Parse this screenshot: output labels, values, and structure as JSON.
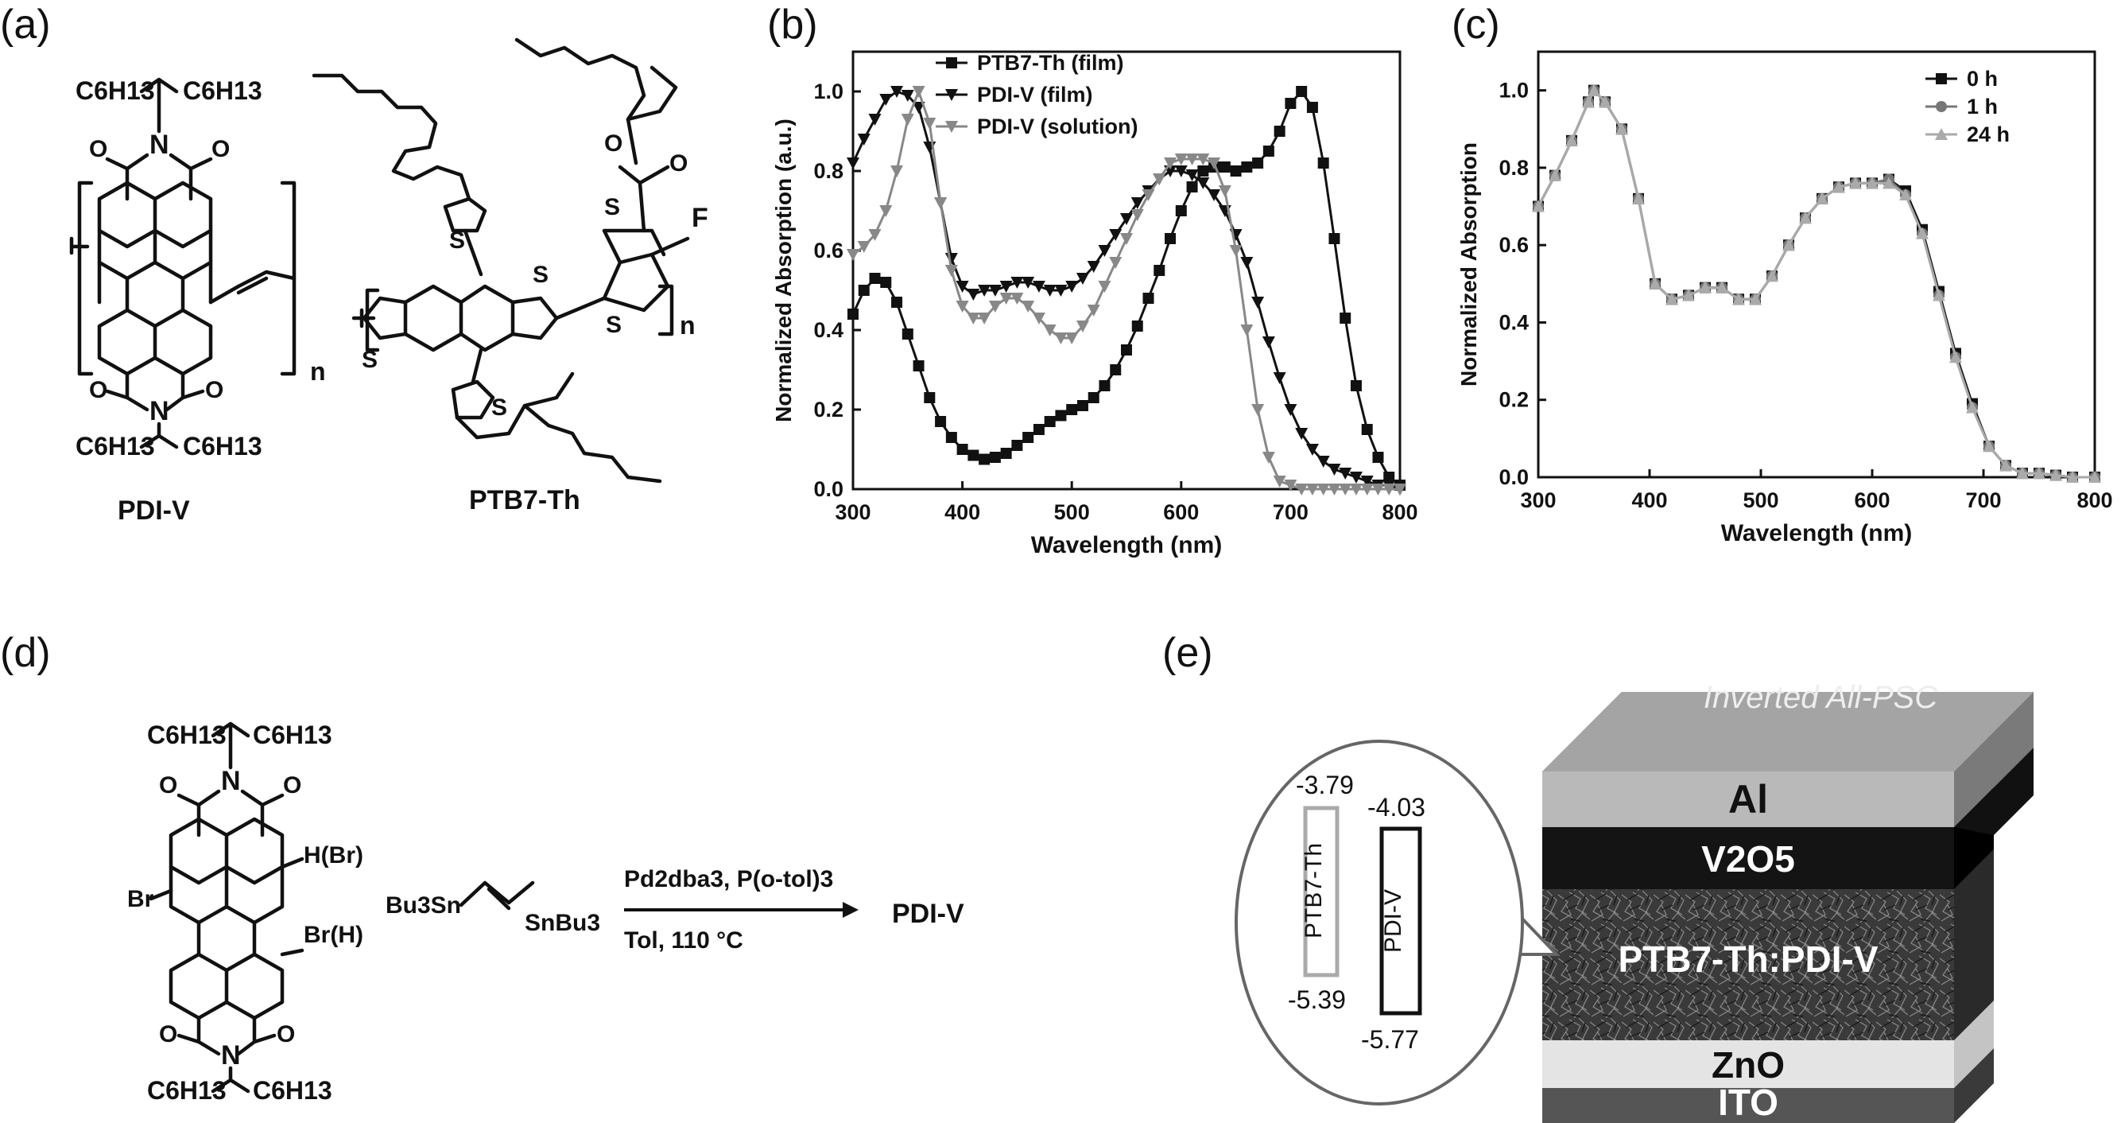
{
  "panels": {
    "a": "(a)",
    "b": "(b)",
    "c": "(c)",
    "d": "(d)",
    "e": "(e)"
  },
  "structures": {
    "pdiv_name": "PDI-V",
    "ptb7_name": "PTB7-Th",
    "alkyl_left": "C6H13",
    "alkyl_right": "C6H13",
    "atom_N": "N",
    "atom_O": "O",
    "atom_S": "S",
    "atom_F": "F",
    "repeat_n": "n"
  },
  "scheme": {
    "br_left": "Br",
    "h_br": "H(Br)",
    "br_h": "Br(H)",
    "stannane_left": "Bu3Sn",
    "stannane_right": "SnBu3",
    "reagents": "Pd2dba3, P(o-tol)3",
    "conditions": "Tol, 110 °C",
    "product": "PDI-V"
  },
  "device": {
    "banner": "Inverted All-PSC",
    "layers": [
      "Al",
      "V2O5",
      "PTB7-Th:PDI-V",
      "ZnO",
      "ITO"
    ],
    "energy": {
      "donor_label": "PTB7-Th",
      "acceptor_label": "PDI-V",
      "donor_lumo": "-3.79",
      "acceptor_lumo": "-4.03",
      "donor_homo": "-5.39",
      "acceptor_homo": "-5.77"
    },
    "colors": {
      "al": "#b9b9b9",
      "v2o5": "#141414",
      "active": "#3a3a3a",
      "zno": "#e4e4e4",
      "ito": "#555555"
    }
  },
  "chart_data": [
    {
      "panel": "b",
      "type": "line",
      "xlabel": "Wavelength (nm)",
      "ylabel": "Normalized Absorption (a.u.)",
      "xlim": [
        300,
        800
      ],
      "ylim": [
        0.0,
        1.1
      ],
      "xticks": [
        300,
        400,
        500,
        600,
        700,
        800
      ],
      "yticks": [
        "0.0",
        "0.2",
        "0.4",
        "0.6",
        "0.8",
        "1.0"
      ],
      "legend_position": "top-right",
      "series": [
        {
          "name": "PTB7-Th (film)",
          "marker": "square",
          "color": "#111111",
          "x": [
            300,
            310,
            320,
            330,
            340,
            350,
            360,
            370,
            380,
            390,
            400,
            410,
            420,
            430,
            440,
            450,
            460,
            470,
            480,
            490,
            500,
            510,
            520,
            530,
            540,
            550,
            560,
            570,
            580,
            590,
            600,
            610,
            620,
            630,
            640,
            650,
            660,
            670,
            680,
            690,
            700,
            710,
            720,
            730,
            740,
            750,
            760,
            770,
            780,
            790,
            800
          ],
          "y": [
            0.44,
            0.5,
            0.53,
            0.52,
            0.47,
            0.39,
            0.31,
            0.23,
            0.17,
            0.13,
            0.1,
            0.085,
            0.075,
            0.08,
            0.09,
            0.11,
            0.13,
            0.15,
            0.17,
            0.185,
            0.2,
            0.21,
            0.23,
            0.26,
            0.3,
            0.35,
            0.41,
            0.48,
            0.55,
            0.63,
            0.7,
            0.76,
            0.8,
            0.81,
            0.81,
            0.8,
            0.81,
            0.82,
            0.85,
            0.9,
            0.97,
            1.0,
            0.96,
            0.82,
            0.63,
            0.43,
            0.26,
            0.15,
            0.08,
            0.03,
            0.01
          ]
        },
        {
          "name": "PDI-V (film)",
          "marker": "triangle-down",
          "color": "#111111",
          "x": [
            300,
            310,
            320,
            330,
            340,
            350,
            360,
            370,
            380,
            390,
            400,
            410,
            420,
            430,
            440,
            450,
            460,
            470,
            480,
            490,
            500,
            510,
            520,
            530,
            540,
            550,
            560,
            570,
            580,
            590,
            600,
            610,
            620,
            630,
            640,
            650,
            660,
            670,
            680,
            690,
            700,
            710,
            720,
            730,
            740,
            750,
            760,
            770,
            780,
            790,
            800
          ],
          "y": [
            0.82,
            0.88,
            0.93,
            0.98,
            1.0,
            0.99,
            0.96,
            0.86,
            0.72,
            0.58,
            0.51,
            0.49,
            0.5,
            0.5,
            0.51,
            0.52,
            0.52,
            0.51,
            0.5,
            0.5,
            0.51,
            0.53,
            0.56,
            0.6,
            0.64,
            0.68,
            0.72,
            0.75,
            0.78,
            0.8,
            0.8,
            0.79,
            0.77,
            0.74,
            0.7,
            0.64,
            0.57,
            0.47,
            0.37,
            0.28,
            0.2,
            0.14,
            0.1,
            0.07,
            0.05,
            0.04,
            0.03,
            0.02,
            0.01,
            0.01,
            0.0
          ]
        },
        {
          "name": "PDI-V (solution)",
          "marker": "triangle-down",
          "color": "#888888",
          "x": [
            300,
            310,
            320,
            330,
            340,
            350,
            360,
            370,
            380,
            390,
            400,
            410,
            420,
            430,
            440,
            450,
            460,
            470,
            480,
            490,
            500,
            510,
            520,
            530,
            540,
            550,
            560,
            570,
            580,
            590,
            600,
            610,
            620,
            630,
            640,
            650,
            660,
            670,
            680,
            690,
            700,
            710,
            720,
            730,
            740,
            750,
            760,
            770,
            780,
            790,
            800
          ],
          "y": [
            0.59,
            0.61,
            0.64,
            0.7,
            0.8,
            0.93,
            1.0,
            0.92,
            0.72,
            0.55,
            0.46,
            0.43,
            0.43,
            0.46,
            0.48,
            0.48,
            0.46,
            0.43,
            0.4,
            0.38,
            0.38,
            0.41,
            0.45,
            0.51,
            0.57,
            0.63,
            0.69,
            0.74,
            0.78,
            0.82,
            0.83,
            0.83,
            0.83,
            0.82,
            0.75,
            0.6,
            0.4,
            0.2,
            0.08,
            0.02,
            0.01,
            0.0,
            0.0,
            0.0,
            0.0,
            0.0,
            0.0,
            0.0,
            0.0,
            0.0,
            0.0
          ]
        }
      ]
    },
    {
      "panel": "c",
      "type": "line",
      "xlabel": "Wavelength (nm)",
      "ylabel": "Normalized Absorption",
      "xlim": [
        300,
        800
      ],
      "ylim": [
        0.0,
        1.1
      ],
      "xticks": [
        300,
        400,
        500,
        600,
        700,
        800
      ],
      "yticks": [
        "0.0",
        "0.2",
        "0.4",
        "0.6",
        "0.8",
        "1.0"
      ],
      "legend_position": "top-right",
      "series": [
        {
          "name": "0 h",
          "marker": "square",
          "color": "#111111",
          "x": [
            300,
            315,
            330,
            345,
            350,
            360,
            375,
            390,
            405,
            420,
            435,
            450,
            465,
            480,
            495,
            510,
            525,
            540,
            555,
            570,
            585,
            600,
            615,
            630,
            645,
            660,
            675,
            690,
            705,
            720,
            735,
            750,
            765,
            780,
            800
          ],
          "y": [
            0.7,
            0.78,
            0.87,
            0.97,
            1.0,
            0.97,
            0.9,
            0.72,
            0.5,
            0.46,
            0.47,
            0.49,
            0.49,
            0.46,
            0.46,
            0.52,
            0.6,
            0.67,
            0.72,
            0.75,
            0.76,
            0.76,
            0.77,
            0.74,
            0.64,
            0.48,
            0.32,
            0.19,
            0.08,
            0.03,
            0.01,
            0.01,
            0.005,
            0.0,
            0.0
          ]
        },
        {
          "name": "1 h",
          "marker": "circle",
          "color": "#777777",
          "x": [
            300,
            315,
            330,
            345,
            350,
            360,
            375,
            390,
            405,
            420,
            435,
            450,
            465,
            480,
            495,
            510,
            525,
            540,
            555,
            570,
            585,
            600,
            615,
            630,
            645,
            660,
            675,
            690,
            705,
            720,
            735,
            750,
            765,
            780,
            800
          ],
          "y": [
            0.7,
            0.78,
            0.87,
            0.97,
            1.0,
            0.97,
            0.9,
            0.72,
            0.5,
            0.46,
            0.47,
            0.49,
            0.49,
            0.46,
            0.46,
            0.52,
            0.6,
            0.67,
            0.72,
            0.75,
            0.76,
            0.76,
            0.77,
            0.73,
            0.63,
            0.47,
            0.31,
            0.18,
            0.08,
            0.03,
            0.01,
            0.01,
            0.005,
            0.0,
            0.0
          ]
        },
        {
          "name": "24 h",
          "marker": "triangle-up",
          "color": "#aaaaaa",
          "x": [
            300,
            315,
            330,
            345,
            350,
            360,
            375,
            390,
            405,
            420,
            435,
            450,
            465,
            480,
            495,
            510,
            525,
            540,
            555,
            570,
            585,
            600,
            615,
            630,
            645,
            660,
            675,
            690,
            705,
            720,
            735,
            750,
            765,
            780,
            800
          ],
          "y": [
            0.7,
            0.78,
            0.87,
            0.97,
            1.0,
            0.97,
            0.9,
            0.72,
            0.5,
            0.46,
            0.47,
            0.49,
            0.49,
            0.46,
            0.46,
            0.52,
            0.6,
            0.67,
            0.72,
            0.75,
            0.76,
            0.76,
            0.76,
            0.73,
            0.63,
            0.47,
            0.31,
            0.18,
            0.08,
            0.03,
            0.01,
            0.01,
            0.005,
            0.0,
            0.0
          ]
        }
      ]
    }
  ]
}
